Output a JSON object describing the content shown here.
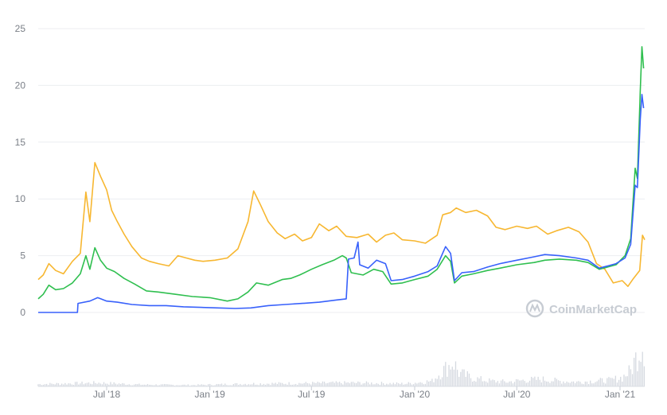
{
  "chart_data": {
    "type": "line",
    "title": "",
    "xlabel": "",
    "ylabel": "",
    "ylim": [
      0,
      25
    ],
    "y_ticks": [
      "0",
      "5",
      "10",
      "15",
      "20",
      "25"
    ],
    "x_ticks": [
      {
        "label": "Jul '18",
        "date": "2018-07-01"
      },
      {
        "label": "Jan '19",
        "date": "2019-01-01"
      },
      {
        "label": "Jul '19",
        "date": "2019-07-01"
      },
      {
        "label": "Jan '20",
        "date": "2020-01-01"
      },
      {
        "label": "Jul '20",
        "date": "2020-07-01"
      },
      {
        "label": "Jan '21",
        "date": "2021-01-01"
      }
    ],
    "grid": true,
    "legend": "none",
    "series": [
      {
        "color": "#f7b731",
        "points": [
          [
            "2018-03-01",
            2.9
          ],
          [
            "2018-03-10",
            3.3
          ],
          [
            "2018-03-20",
            4.3
          ],
          [
            "2018-04-01",
            3.7
          ],
          [
            "2018-04-15",
            3.4
          ],
          [
            "2018-05-01",
            4.5
          ],
          [
            "2018-05-15",
            5.2
          ],
          [
            "2018-05-25",
            10.6
          ],
          [
            "2018-06-01",
            8.0
          ],
          [
            "2018-06-10",
            13.2
          ],
          [
            "2018-06-20",
            12.0
          ],
          [
            "2018-07-01",
            10.8
          ],
          [
            "2018-07-10",
            9.0
          ],
          [
            "2018-07-20",
            8.0
          ],
          [
            "2018-08-01",
            6.9
          ],
          [
            "2018-08-15",
            5.8
          ],
          [
            "2018-09-01",
            4.8
          ],
          [
            "2018-09-15",
            4.5
          ],
          [
            "2018-10-01",
            4.3
          ],
          [
            "2018-10-20",
            4.1
          ],
          [
            "2018-11-05",
            5.0
          ],
          [
            "2018-11-20",
            4.8
          ],
          [
            "2018-12-05",
            4.6
          ],
          [
            "2018-12-20",
            4.5
          ],
          [
            "2019-01-10",
            4.6
          ],
          [
            "2019-02-01",
            4.8
          ],
          [
            "2019-02-20",
            5.6
          ],
          [
            "2019-03-10",
            8.0
          ],
          [
            "2019-03-20",
            10.7
          ],
          [
            "2019-04-01",
            9.5
          ],
          [
            "2019-04-15",
            8.0
          ],
          [
            "2019-05-01",
            7.0
          ],
          [
            "2019-05-15",
            6.5
          ],
          [
            "2019-06-01",
            6.9
          ],
          [
            "2019-06-15",
            6.3
          ],
          [
            "2019-07-01",
            6.6
          ],
          [
            "2019-07-15",
            7.8
          ],
          [
            "2019-08-01",
            7.2
          ],
          [
            "2019-08-15",
            7.6
          ],
          [
            "2019-09-01",
            6.7
          ],
          [
            "2019-09-20",
            6.6
          ],
          [
            "2019-10-10",
            6.9
          ],
          [
            "2019-10-25",
            6.2
          ],
          [
            "2019-11-10",
            6.8
          ],
          [
            "2019-11-25",
            7.0
          ],
          [
            "2019-12-10",
            6.4
          ],
          [
            "2020-01-01",
            6.3
          ],
          [
            "2020-01-20",
            6.1
          ],
          [
            "2020-02-10",
            6.8
          ],
          [
            "2020-02-20",
            8.6
          ],
          [
            "2020-03-05",
            8.8
          ],
          [
            "2020-03-15",
            9.2
          ],
          [
            "2020-04-01",
            8.8
          ],
          [
            "2020-04-20",
            9.0
          ],
          [
            "2020-05-10",
            8.5
          ],
          [
            "2020-05-25",
            7.5
          ],
          [
            "2020-06-10",
            7.3
          ],
          [
            "2020-07-01",
            7.6
          ],
          [
            "2020-07-20",
            7.4
          ],
          [
            "2020-08-05",
            7.6
          ],
          [
            "2020-08-25",
            6.9
          ],
          [
            "2020-09-10",
            7.2
          ],
          [
            "2020-10-01",
            7.5
          ],
          [
            "2020-10-20",
            7.1
          ],
          [
            "2020-11-05",
            6.2
          ],
          [
            "2020-11-20",
            4.3
          ],
          [
            "2020-12-05",
            3.8
          ],
          [
            "2020-12-20",
            2.6
          ],
          [
            "2021-01-05",
            2.8
          ],
          [
            "2021-01-15",
            2.3
          ],
          [
            "2021-01-25",
            3.0
          ],
          [
            "2021-02-05",
            3.7
          ],
          [
            "2021-02-10",
            6.8
          ],
          [
            "2021-02-14",
            6.4
          ]
        ]
      },
      {
        "color": "#2fbf4f",
        "points": [
          [
            "2018-03-01",
            1.2
          ],
          [
            "2018-03-10",
            1.6
          ],
          [
            "2018-03-20",
            2.4
          ],
          [
            "2018-04-01",
            2.0
          ],
          [
            "2018-04-15",
            2.1
          ],
          [
            "2018-05-01",
            2.6
          ],
          [
            "2018-05-15",
            3.4
          ],
          [
            "2018-05-25",
            5.0
          ],
          [
            "2018-06-01",
            3.8
          ],
          [
            "2018-06-10",
            5.7
          ],
          [
            "2018-06-20",
            4.6
          ],
          [
            "2018-07-01",
            3.9
          ],
          [
            "2018-07-15",
            3.6
          ],
          [
            "2018-08-01",
            3.0
          ],
          [
            "2018-08-20",
            2.5
          ],
          [
            "2018-09-10",
            1.9
          ],
          [
            "2018-10-01",
            1.8
          ],
          [
            "2018-11-01",
            1.6
          ],
          [
            "2018-12-01",
            1.4
          ],
          [
            "2019-01-01",
            1.3
          ],
          [
            "2019-02-01",
            1.0
          ],
          [
            "2019-02-20",
            1.2
          ],
          [
            "2019-03-10",
            1.8
          ],
          [
            "2019-03-25",
            2.6
          ],
          [
            "2019-04-15",
            2.4
          ],
          [
            "2019-05-10",
            2.9
          ],
          [
            "2019-05-25",
            3.0
          ],
          [
            "2019-06-10",
            3.3
          ],
          [
            "2019-07-01",
            3.8
          ],
          [
            "2019-07-20",
            4.2
          ],
          [
            "2019-08-10",
            4.6
          ],
          [
            "2019-08-25",
            5.0
          ],
          [
            "2019-09-01",
            4.8
          ],
          [
            "2019-09-10",
            3.5
          ],
          [
            "2019-10-01",
            3.3
          ],
          [
            "2019-10-20",
            3.8
          ],
          [
            "2019-11-05",
            3.6
          ],
          [
            "2019-11-20",
            2.5
          ],
          [
            "2019-12-10",
            2.6
          ],
          [
            "2020-01-01",
            2.9
          ],
          [
            "2020-01-25",
            3.2
          ],
          [
            "2020-02-10",
            3.8
          ],
          [
            "2020-02-25",
            5.0
          ],
          [
            "2020-03-05",
            4.5
          ],
          [
            "2020-03-12",
            2.6
          ],
          [
            "2020-03-25",
            3.2
          ],
          [
            "2020-04-15",
            3.4
          ],
          [
            "2020-05-10",
            3.7
          ],
          [
            "2020-06-01",
            3.9
          ],
          [
            "2020-07-01",
            4.2
          ],
          [
            "2020-08-01",
            4.4
          ],
          [
            "2020-08-20",
            4.6
          ],
          [
            "2020-09-15",
            4.7
          ],
          [
            "2020-10-15",
            4.6
          ],
          [
            "2020-11-05",
            4.4
          ],
          [
            "2020-11-25",
            3.8
          ],
          [
            "2020-12-10",
            4.0
          ],
          [
            "2020-12-25",
            4.2
          ],
          [
            "2021-01-10",
            5.0
          ],
          [
            "2021-01-20",
            6.5
          ],
          [
            "2021-01-28",
            12.7
          ],
          [
            "2021-02-01",
            11.8
          ],
          [
            "2021-02-06",
            19.5
          ],
          [
            "2021-02-09",
            23.4
          ],
          [
            "2021-02-12",
            21.5
          ]
        ]
      },
      {
        "color": "#3861fb",
        "points": [
          [
            "2018-03-01",
            0.0
          ],
          [
            "2018-05-10",
            0.0
          ],
          [
            "2018-05-11",
            0.8
          ],
          [
            "2018-06-01",
            1.0
          ],
          [
            "2018-06-15",
            1.3
          ],
          [
            "2018-07-01",
            1.0
          ],
          [
            "2018-07-20",
            0.9
          ],
          [
            "2018-08-15",
            0.7
          ],
          [
            "2018-09-15",
            0.6
          ],
          [
            "2018-10-15",
            0.6
          ],
          [
            "2018-11-15",
            0.5
          ],
          [
            "2018-12-15",
            0.45
          ],
          [
            "2019-01-15",
            0.4
          ],
          [
            "2019-02-15",
            0.35
          ],
          [
            "2019-03-15",
            0.4
          ],
          [
            "2019-04-15",
            0.6
          ],
          [
            "2019-05-15",
            0.7
          ],
          [
            "2019-06-15",
            0.8
          ],
          [
            "2019-07-15",
            0.9
          ],
          [
            "2019-08-15",
            1.1
          ],
          [
            "2019-09-01",
            1.2
          ],
          [
            "2019-09-05",
            4.7
          ],
          [
            "2019-09-15",
            4.8
          ],
          [
            "2019-09-22",
            6.2
          ],
          [
            "2019-09-25",
            4.2
          ],
          [
            "2019-10-10",
            3.9
          ],
          [
            "2019-10-25",
            4.6
          ],
          [
            "2019-11-10",
            4.3
          ],
          [
            "2019-11-20",
            2.8
          ],
          [
            "2019-12-10",
            2.9
          ],
          [
            "2020-01-01",
            3.2
          ],
          [
            "2020-01-25",
            3.6
          ],
          [
            "2020-02-10",
            4.1
          ],
          [
            "2020-02-25",
            5.8
          ],
          [
            "2020-03-05",
            5.2
          ],
          [
            "2020-03-12",
            2.8
          ],
          [
            "2020-03-25",
            3.5
          ],
          [
            "2020-04-15",
            3.6
          ],
          [
            "2020-05-10",
            4.0
          ],
          [
            "2020-06-01",
            4.3
          ],
          [
            "2020-07-01",
            4.6
          ],
          [
            "2020-08-01",
            4.9
          ],
          [
            "2020-08-20",
            5.1
          ],
          [
            "2020-09-15",
            5.0
          ],
          [
            "2020-10-15",
            4.8
          ],
          [
            "2020-11-05",
            4.6
          ],
          [
            "2020-11-25",
            3.9
          ],
          [
            "2020-12-10",
            4.1
          ],
          [
            "2020-12-25",
            4.3
          ],
          [
            "2021-01-10",
            4.8
          ],
          [
            "2021-01-20",
            6.0
          ],
          [
            "2021-01-28",
            11.2
          ],
          [
            "2021-02-01",
            11.0
          ],
          [
            "2021-02-06",
            17.0
          ],
          [
            "2021-02-09",
            19.2
          ],
          [
            "2021-02-12",
            18.0
          ]
        ]
      }
    ],
    "volume": {
      "color": "#d5d9e0",
      "points": [
        [
          "2018-03-01",
          0.05
        ],
        [
          "2018-06-15",
          0.08
        ],
        [
          "2018-09-01",
          0.04
        ],
        [
          "2018-12-01",
          0.03
        ],
        [
          "2019-03-15",
          0.06
        ],
        [
          "2019-06-15",
          0.07
        ],
        [
          "2019-09-15",
          0.08
        ],
        [
          "2019-12-15",
          0.06
        ],
        [
          "2020-02-01",
          0.12
        ],
        [
          "2020-02-15",
          0.3
        ],
        [
          "2020-03-01",
          0.45
        ],
        [
          "2020-03-10",
          0.55
        ],
        [
          "2020-03-20",
          0.3
        ],
        [
          "2020-04-15",
          0.18
        ],
        [
          "2020-05-15",
          0.12
        ],
        [
          "2020-06-15",
          0.1
        ],
        [
          "2020-07-15",
          0.14
        ],
        [
          "2020-08-15",
          0.16
        ],
        [
          "2020-09-15",
          0.12
        ],
        [
          "2020-10-15",
          0.1
        ],
        [
          "2020-11-15",
          0.12
        ],
        [
          "2020-12-15",
          0.14
        ],
        [
          "2021-01-05",
          0.2
        ],
        [
          "2021-01-20",
          0.35
        ],
        [
          "2021-01-28",
          0.6
        ],
        [
          "2021-02-03",
          0.75
        ],
        [
          "2021-02-09",
          1.0
        ],
        [
          "2021-02-12",
          0.85
        ]
      ]
    }
  },
  "watermark": {
    "text": "CoinMarketCap",
    "icon": "coinmarketcap-logo-icon"
  }
}
